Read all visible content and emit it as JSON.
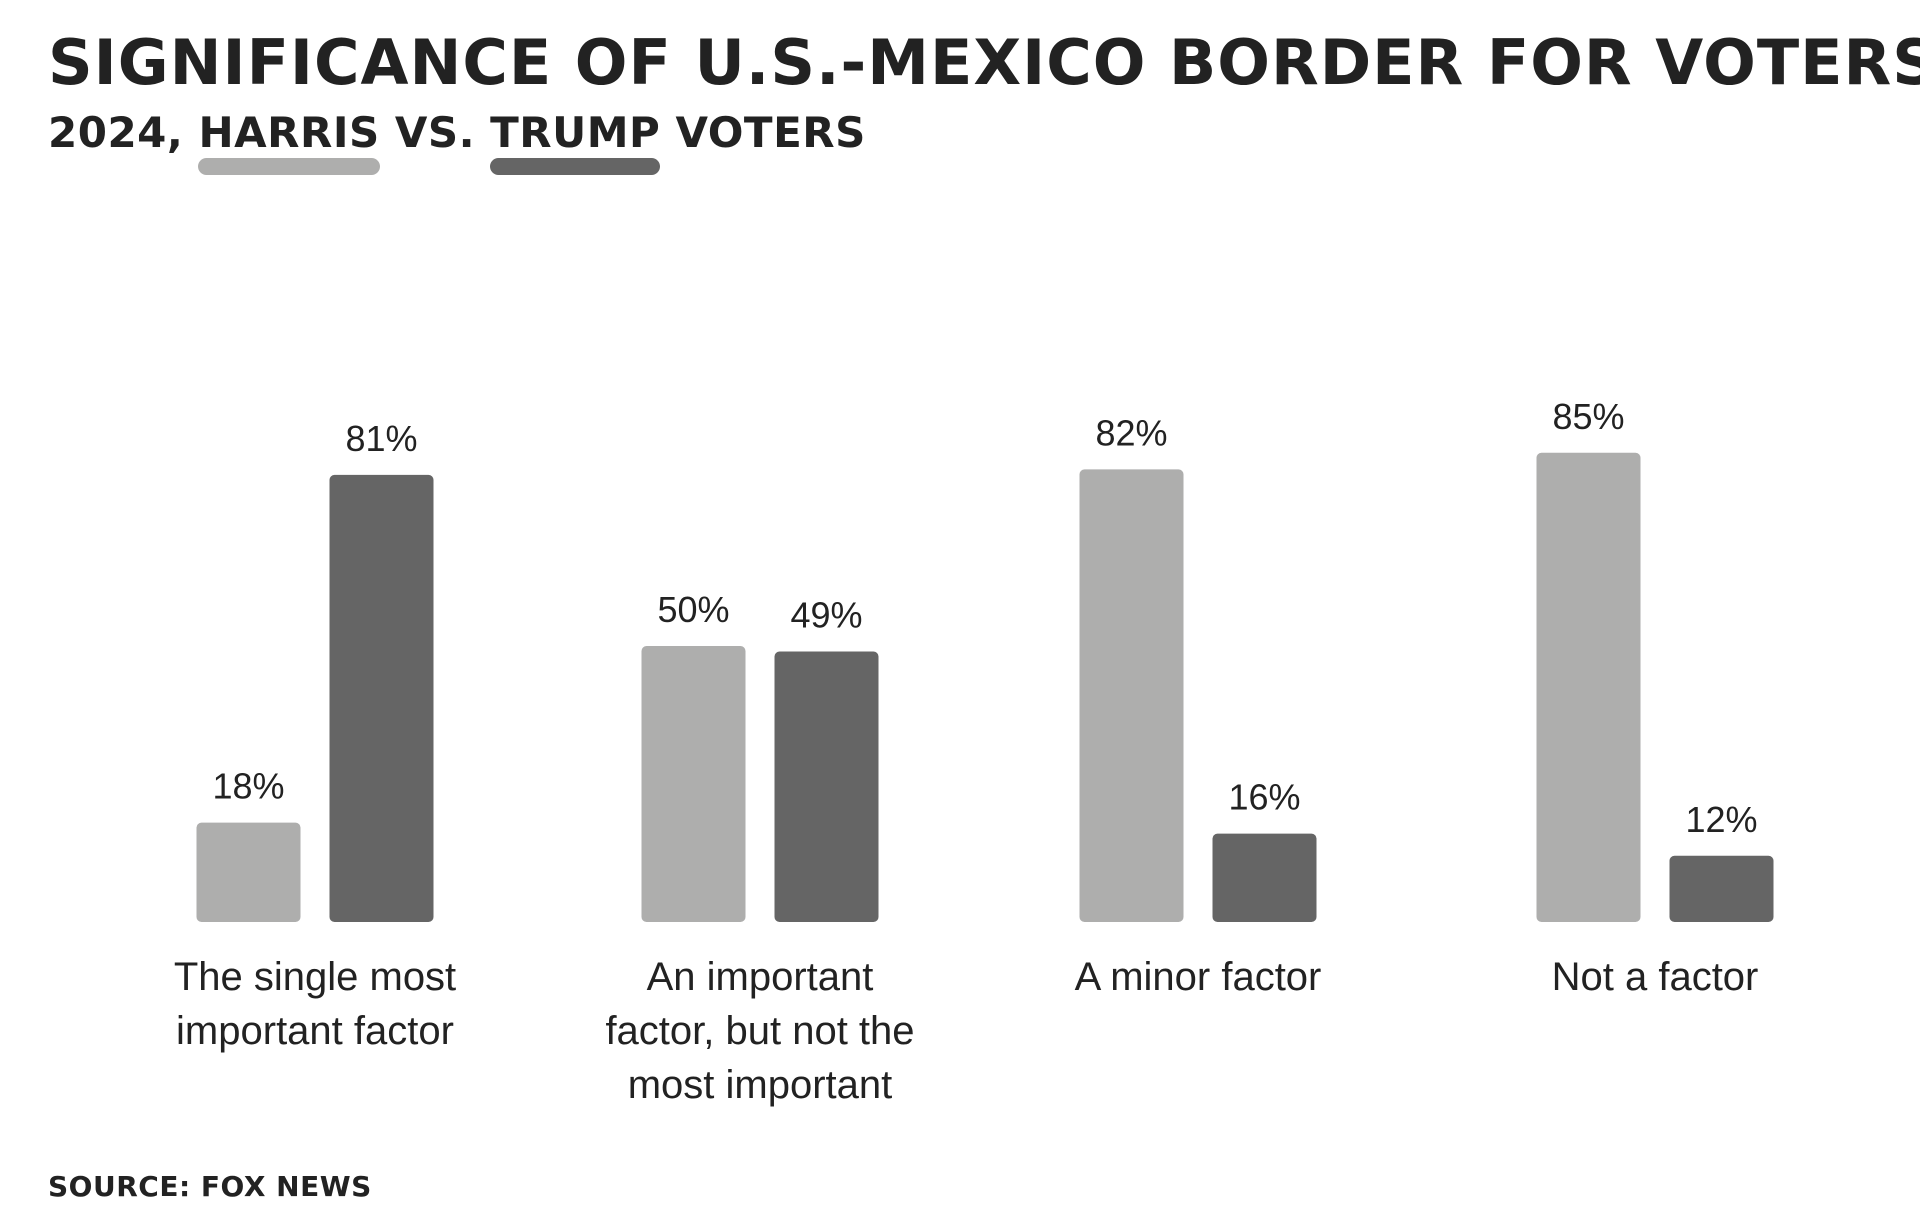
{
  "chart_data": {
    "type": "bar",
    "title": "SIGNIFICANCE OF U.S.-MEXICO BORDER FOR VOTERS",
    "subtitle": {
      "prefix": "2024, ",
      "harris": "HARRIS",
      "middle": " VS. ",
      "trump": "TRUMP",
      "suffix": " VOTERS"
    },
    "categories": [
      "The single most\nimportant factor",
      "An important\nfactor, but not the\nmost important",
      "A minor factor",
      "Not a factor"
    ],
    "series": [
      {
        "name": "HARRIS",
        "color": "#aeaead",
        "values": [
          18,
          50,
          82,
          85
        ],
        "labels": [
          "18%",
          "50%",
          "82%",
          "85%"
        ]
      },
      {
        "name": "TRUMP",
        "color": "#656565",
        "values": [
          81,
          49,
          16,
          12
        ],
        "labels": [
          "81%",
          "49%",
          "16%",
          "12%"
        ]
      }
    ],
    "ylim": [
      0,
      100
    ],
    "grid": false,
    "legend": "subtitle-underline",
    "source": "SOURCE: FOX NEWS"
  }
}
